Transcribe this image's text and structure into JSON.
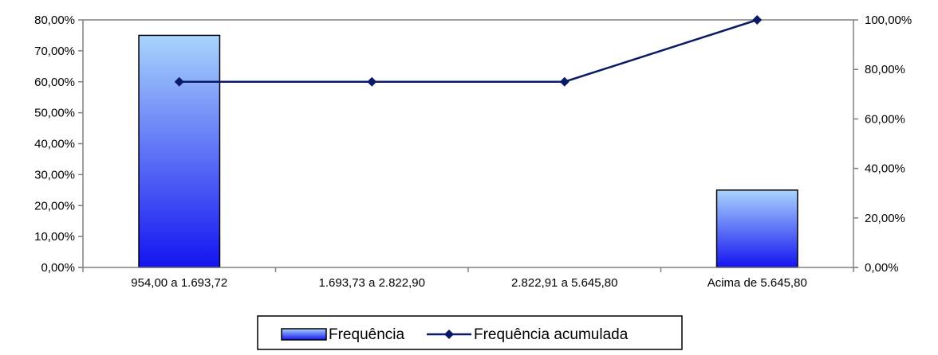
{
  "chart_data": {
    "type": "bar",
    "categories": [
      "954,00 a 1.693,72",
      "1.693,73 a 2.822,90",
      "2.822,91 a 5.645,80",
      "Acima de 5.645,80"
    ],
    "series": [
      {
        "name": "Frequência",
        "type": "bar",
        "axis": "left",
        "values": [
          75,
          0,
          0,
          25
        ],
        "color": "#1d2cf2",
        "gradient_top": "#a9d4fc",
        "gradient_bottom": "#1414f0"
      },
      {
        "name": "Frequência acumulada",
        "type": "line",
        "axis": "right",
        "values": [
          75,
          75,
          75,
          100
        ],
        "color": "#0b1a66",
        "marker": "diamond"
      }
    ],
    "y_left": {
      "min": 0,
      "max": 80,
      "step": 10,
      "ticks": [
        "0,00%",
        "10,00%",
        "20,00%",
        "30,00%",
        "40,00%",
        "50,00%",
        "60,00%",
        "70,00%",
        "80,00%"
      ]
    },
    "y_right": {
      "min": 0,
      "max": 100,
      "step": 20,
      "ticks": [
        "0,00%",
        "20,00%",
        "40,00%",
        "60,00%",
        "80,00%",
        "100,00%"
      ]
    },
    "grid": false,
    "legend_position": "bottom",
    "title": "",
    "xlabel": "",
    "ylabel": ""
  }
}
